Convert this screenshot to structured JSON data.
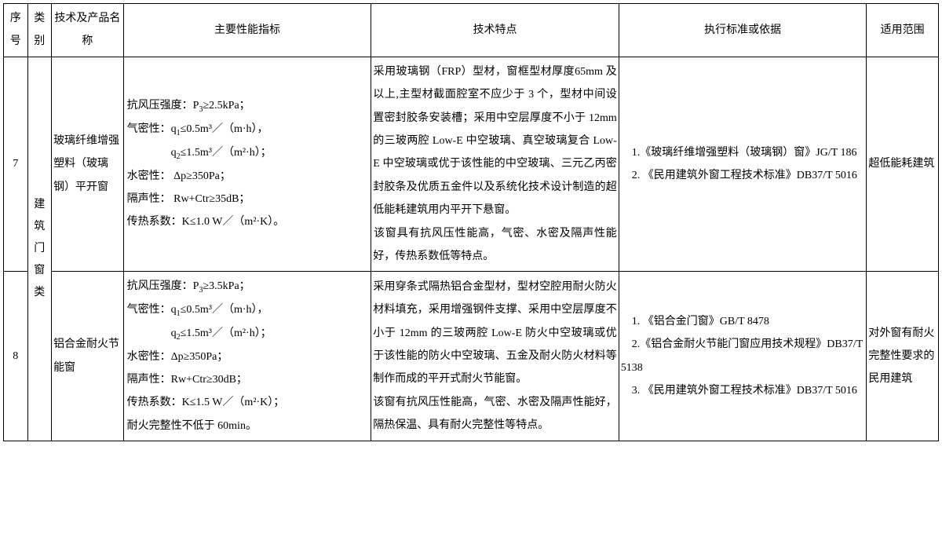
{
  "headers": {
    "seq": "序号",
    "cat": "类别",
    "name": "技术及产品名称",
    "perf": "主要性能指标",
    "feat": "技术特点",
    "std": "执行标准或依据",
    "scope": "适用范围"
  },
  "category": "建筑门窗类",
  "rows": [
    {
      "seq": "7",
      "name": "玻璃纤维增强塑料（玻璃钢）平开窗",
      "perf_l1": "抗风压强度：P",
      "perf_l1_sub": "3",
      "perf_l1_tail": "≥2.5kPa；",
      "perf_l2": "气密性：q",
      "perf_l2_sub": "1",
      "perf_l2_tail": "≤0.5m³／（m·h），",
      "perf_l3_pre": "　　　　q",
      "perf_l3_sub": "2",
      "perf_l3_tail": "≤1.5m³／（m²·h）；",
      "perf_l4": "水密性：  Δp≥350Pa；",
      "perf_l5": "隔声性：  Rw+Ctr≥35dB；",
      "perf_l6": "传热系数：K≤1.0 W／（m²·K）。",
      "feat_p1": "采用玻璃钢（FRP）型材，窗框型材厚度65mm 及以上,主型材截面腔室不应少于 3 个，型材中间设置密封胶条安装槽；采用中空层厚度不小于 12mm 的三玻两腔 Low-E 中空玻璃、真空玻璃复合 Low-E 中空玻璃或优于该性能的中空玻璃、三元乙丙密封胶条及优质五金件以及系统化技术设计制造的超低能耗建筑用内平开下悬窗。",
      "feat_p2": "该窗具有抗风压性能高，气密、水密及隔声性能好，传热系数低等特点。",
      "std_l1": "　1.《玻璃纤维增强塑料（玻璃钢）窗》JG/T 186",
      "std_l2": "　2. 《民用建筑外窗工程技术标准》DB37/T 5016",
      "scope": "超低能耗建筑"
    },
    {
      "seq": "8",
      "name": "铝合金耐火节能窗",
      "perf_l1": "抗风压强度：P",
      "perf_l1_sub": "3",
      "perf_l1_tail": "≥3.5kPa；",
      "perf_l2": "气密性：q",
      "perf_l2_sub": "1",
      "perf_l2_tail": "≤0.5m³／（m·h），",
      "perf_l3_pre": "　　　　q",
      "perf_l3_sub": "2",
      "perf_l3_tail": "≤1.5m³／（m²·h）；",
      "perf_l4": "水密性：Δp≥350Pa；",
      "perf_l5": "隔声性：Rw+Ctr≥30dB；",
      "perf_l6": "传热系数：K≤1.5 W／（m²·K）；",
      "perf_l7": "耐火完整性不低于 60min。",
      "feat_p1": "采用穿条式隔热铝合金型材，型材空腔用耐火防火材料填充，采用增强钢件支撑、采用中空层厚度不小于 12mm 的三玻两腔 Low-E 防火中空玻璃或优于该性能的防火中空玻璃、五金及耐火防火材料等制作而成的平开式耐火节能窗。",
      "feat_p2": "该窗有抗风压性能高，气密、水密及隔声性能好，隔热保温、具有耐火完整性等特点。",
      "std_l1": "　1. 《铝合金门窗》GB/T 8478",
      "std_l2": "　2.《铝合金耐火节能门窗应用技术规程》DB37/T 5138",
      "std_l3": "　3. 《民用建筑外窗工程技术标准》DB37/T 5016",
      "scope": "对外窗有耐火完整性要求的民用建筑"
    }
  ]
}
